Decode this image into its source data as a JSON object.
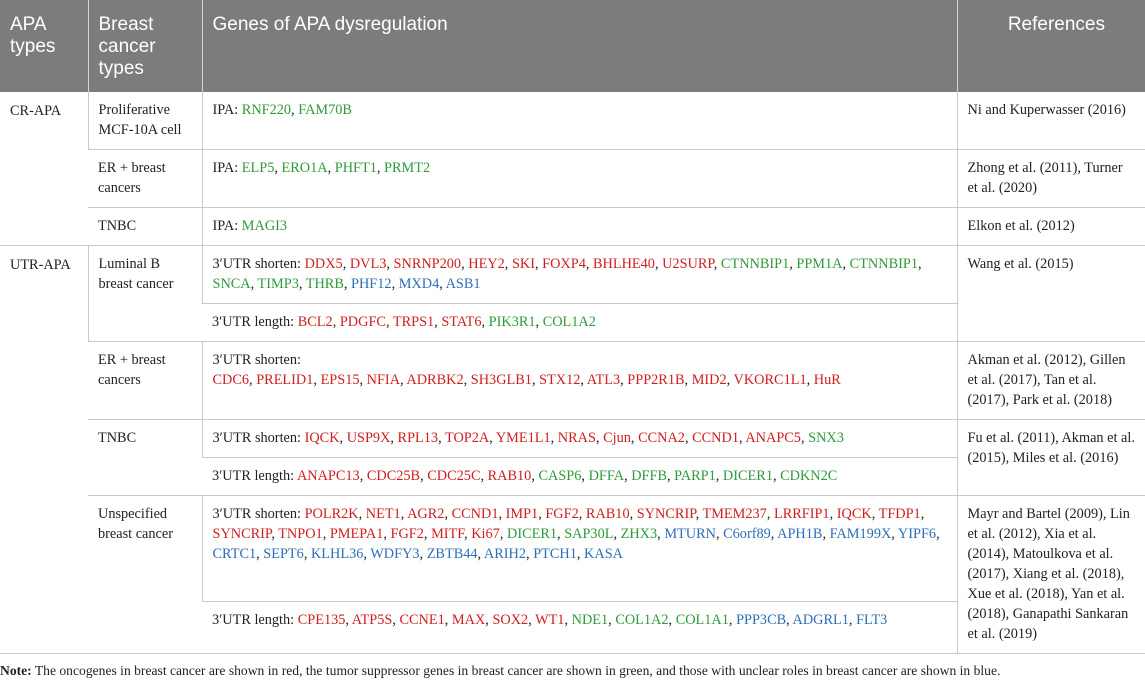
{
  "header": {
    "col1": "APA types",
    "col2": "Breast cancer types",
    "col3": "Genes of APA dysregulation",
    "col4": "References"
  },
  "groups": [
    {
      "apa_type": "CR-APA",
      "rows": [
        {
          "cancer": "Proliferative MCF-10A cell",
          "prefix": "IPA: ",
          "genes": [
            [
              "RNF220",
              "g"
            ],
            [
              "FAM70B",
              "g"
            ]
          ],
          "ref": "Ni and Kuperwasser (2016)"
        },
        {
          "cancer": "ER + breast cancers",
          "prefix": "IPA: ",
          "genes": [
            [
              "ELP5",
              "g"
            ],
            [
              "ERO1A",
              "g"
            ],
            [
              "PHFT1",
              "g"
            ],
            [
              "PRMT2",
              "g"
            ]
          ],
          "ref": "Zhong et al. (2011), Turner et al. (2020)"
        },
        {
          "cancer": "TNBC",
          "prefix": "IPA: ",
          "genes": [
            [
              "MAGI3",
              "g"
            ]
          ],
          "ref": "Elkon et al. (2012)"
        }
      ]
    },
    {
      "apa_type": "UTR-APA",
      "rows": [
        {
          "cancer": "Luminal B breast cancer",
          "prefix": "3′UTR shorten: ",
          "genes": [
            [
              "DDX5",
              "r"
            ],
            [
              "DVL3",
              "r"
            ],
            [
              "SNRNP200",
              "r"
            ],
            [
              "HEY2",
              "r"
            ],
            [
              "SKI",
              "r"
            ],
            [
              "FOXP4",
              "r"
            ],
            [
              "BHLHE40",
              "r"
            ],
            [
              "U2SURP",
              "r"
            ],
            [
              "CTNNBIP1",
              "g"
            ],
            [
              "PPM1A",
              "g"
            ],
            [
              "CTNNBIP1",
              "g"
            ],
            [
              "SNCA",
              "g"
            ],
            [
              "TIMP3",
              "g"
            ],
            [
              "THRB",
              "g"
            ],
            [
              "PHF12",
              "b"
            ],
            [
              "MXD4",
              "b"
            ],
            [
              "ASB1",
              "b"
            ]
          ],
          "ref": "Wang et al. (2015)"
        },
        {
          "cancer": "",
          "prefix": "3′UTR length: ",
          "genes": [
            [
              "BCL2",
              "r"
            ],
            [
              "PDGFC",
              "r"
            ],
            [
              "TRPS1",
              "r"
            ],
            [
              "STAT6",
              "r"
            ],
            [
              "PIK3R1",
              "g"
            ],
            [
              "COL1A2",
              "g"
            ]
          ],
          "ref": ""
        },
        {
          "cancer": "ER + breast cancers",
          "prefix": "3′UTR shorten:",
          "genes": [
            [
              "CDC6",
              "r"
            ],
            [
              "PRELID1",
              "r"
            ],
            [
              "EPS15",
              "r"
            ],
            [
              "NFIA",
              "r"
            ],
            [
              "ADRBK2",
              "r"
            ],
            [
              "SH3GLB1",
              "r"
            ],
            [
              "STX12",
              "r"
            ],
            [
              "ATL3",
              "r"
            ],
            [
              "PPP2R1B",
              "r"
            ],
            [
              "MID2",
              "r"
            ],
            [
              "VKORC1L1",
              "r"
            ],
            [
              "HuR",
              "r"
            ]
          ],
          "ref": "Akman et al. (2012), Gillen et al. (2017), Tan et al. (2017), Park et al. (2018)"
        },
        {
          "cancer": "TNBC",
          "prefix": "3′UTR shorten: ",
          "genes": [
            [
              "IQCK",
              "r"
            ],
            [
              "USP9X",
              "r"
            ],
            [
              "RPL13",
              "r"
            ],
            [
              "TOP2A",
              "r"
            ],
            [
              "YME1L1",
              "r"
            ],
            [
              "NRAS",
              "r"
            ],
            [
              "Cjun",
              "r"
            ],
            [
              "CCNA2",
              "r"
            ],
            [
              "CCND1",
              "r"
            ],
            [
              "ANAPC5",
              "r"
            ],
            [
              "SNX3",
              "g"
            ]
          ],
          "ref": "Fu et al. (2011), Akman et al. (2015), Miles et al. (2016)"
        },
        {
          "cancer": "",
          "prefix": "3′UTR length: ",
          "genes": [
            [
              "ANAPC13",
              "r"
            ],
            [
              "CDC25B",
              "r"
            ],
            [
              "CDC25C",
              "r"
            ],
            [
              "RAB10",
              "r"
            ],
            [
              "CASP6",
              "g"
            ],
            [
              "DFFA",
              "g"
            ],
            [
              "DFFB",
              "g"
            ],
            [
              "PARP1",
              "g"
            ],
            [
              "DICER1",
              "g"
            ],
            [
              "CDKN2C",
              "g"
            ]
          ],
          "ref": ""
        },
        {
          "cancer": "Unspecified breast cancer",
          "prefix": "3′UTR shorten: ",
          "genes": [
            [
              "POLR2K",
              "r"
            ],
            [
              "NET1",
              "r"
            ],
            [
              "AGR2",
              "r"
            ],
            [
              "CCND1",
              "r"
            ],
            [
              "IMP1",
              "r"
            ],
            [
              "FGF2",
              "r"
            ],
            [
              "RAB10",
              "r"
            ],
            [
              "SYNCRIP",
              "r"
            ],
            [
              "TMEM237",
              "r"
            ],
            [
              "LRRFIP1",
              "r"
            ],
            [
              "IQCK",
              "r"
            ],
            [
              "TFDP1",
              "r"
            ],
            [
              "SYNCRIP",
              "r"
            ],
            [
              "TNPO1",
              "r"
            ],
            [
              "PMEPA1",
              "r"
            ],
            [
              "FGF2",
              "r"
            ],
            [
              "MITF",
              "r"
            ],
            [
              "Ki67",
              "r"
            ],
            [
              "DICER1",
              "g"
            ],
            [
              "SAP30L",
              "g"
            ],
            [
              "ZHX3",
              "g"
            ],
            [
              "MTURN",
              "b"
            ],
            [
              "C6orf89",
              "b"
            ],
            [
              "APH1B",
              "b"
            ],
            [
              "FAM199X",
              "b"
            ],
            [
              "YIPF6",
              "b"
            ],
            [
              "CRTC1",
              "b"
            ],
            [
              "SEPT6",
              "b"
            ],
            [
              "KLHL36",
              "b"
            ],
            [
              "WDFY3",
              "b"
            ],
            [
              "ZBTB44",
              "b"
            ],
            [
              "ARIH2",
              "b"
            ],
            [
              "PTCH1",
              "b"
            ],
            [
              "KASA",
              "b"
            ]
          ],
          "ref": "Mayr and Bartel (2009), Lin et al. (2012), Xia et al. (2014), Matoulkova et al. (2017), Xiang et al. (2018), Xue et al. (2018), Yan et al. (2018), Ganapathi Sankaran et al. (2019)"
        },
        {
          "cancer": "",
          "prefix": "3′UTR length: ",
          "genes": [
            [
              "CPE135",
              "r"
            ],
            [
              "ATP5S",
              "r"
            ],
            [
              "CCNE1",
              "r"
            ],
            [
              "MAX",
              "r"
            ],
            [
              "SOX2",
              "r"
            ],
            [
              "WT1",
              "r"
            ],
            [
              "NDE1",
              "g"
            ],
            [
              "COL1A2",
              "g"
            ],
            [
              "COL1A1",
              "g"
            ],
            [
              "PPP3CB",
              "b"
            ],
            [
              "ADGRL1",
              "b"
            ],
            [
              "FLT3",
              "b"
            ]
          ],
          "ref": ""
        }
      ]
    }
  ],
  "note": {
    "label": "Note:",
    "text": " The oncogenes in breast cancer are shown in red, the tumor suppressor genes in breast cancer are shown in green, and those with unclear roles in breast cancer are shown in blue."
  },
  "colors": {
    "oncogene": "#d01e1e",
    "suppressor": "#2f9a3a",
    "unclear": "#2c6fb5"
  }
}
